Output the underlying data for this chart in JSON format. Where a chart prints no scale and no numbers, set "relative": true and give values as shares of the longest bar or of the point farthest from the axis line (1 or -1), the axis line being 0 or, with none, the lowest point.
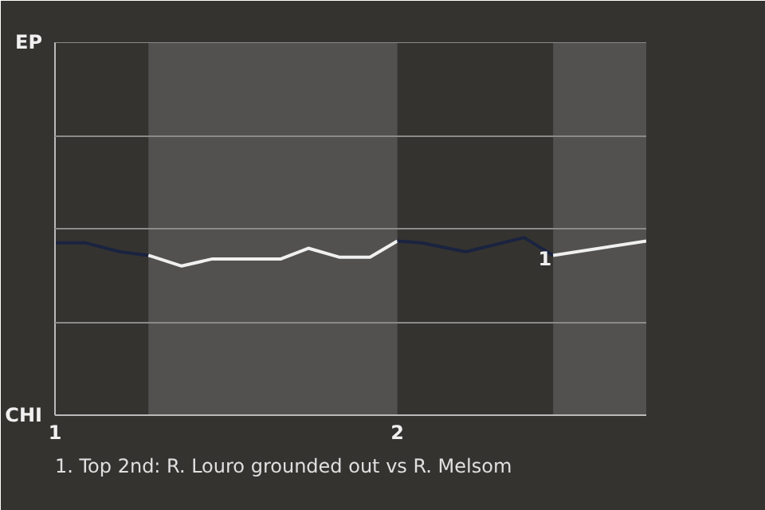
{
  "chart_data": {
    "type": "line",
    "xlim": [
      1,
      2.727
    ],
    "xticks": [
      1,
      2
    ],
    "relative": true,
    "marker": "none",
    "line_style": "solid",
    "ref_lines": [
      {
        "axis": "y",
        "value": 0.52,
        "label": null,
        "color": "#8a8a8a"
      },
      {
        "axis": "y",
        "value": 1.05,
        "label": null,
        "color": "#8a8a8a"
      },
      {
        "axis": "y",
        "value": 1.57,
        "label": null,
        "color": "#8a8a8a"
      },
      {
        "axis": "y",
        "value": 2.1,
        "label": null,
        "color": "#8a8a8a"
      }
    ],
    "series": [
      {
        "color": "#1a2340",
        "x": [
          1.0,
          1.09,
          1.19,
          1.273
        ],
        "values": [
          0.97,
          0.97,
          0.92,
          0.9
        ]
      },
      {
        "color": "#f0f0f0",
        "x": [
          1.273,
          1.37,
          1.46,
          1.66,
          1.74,
          1.83,
          1.92,
          2.0
        ],
        "values": [
          0.9,
          0.84,
          0.88,
          0.88,
          0.94,
          0.89,
          0.89,
          0.98
        ]
      },
      {
        "color": "#1a2340",
        "x": [
          2.0,
          2.07,
          2.2,
          2.37,
          2.455
        ],
        "values": [
          0.98,
          0.97,
          0.92,
          1.0,
          0.9
        ]
      },
      {
        "color": "#f0f0f0",
        "x": [
          2.455,
          2.727
        ],
        "values": [
          0.9,
          0.98
        ]
      }
    ],
    "bands": [
      {
        "axis": "x",
        "from": 1.273,
        "to": 2.0,
        "label": null,
        "color": "#525150"
      },
      {
        "axis": "x",
        "from": 2.455,
        "to": 2.727,
        "label": null,
        "color": "#525150"
      }
    ],
    "annotations": [
      "EP",
      "CHI",
      {
        "text": "1",
        "x": 2.455,
        "y": 0.9
      },
      "1. Top 2nd: R. Louro grounded out vs R. Melsom"
    ]
  }
}
